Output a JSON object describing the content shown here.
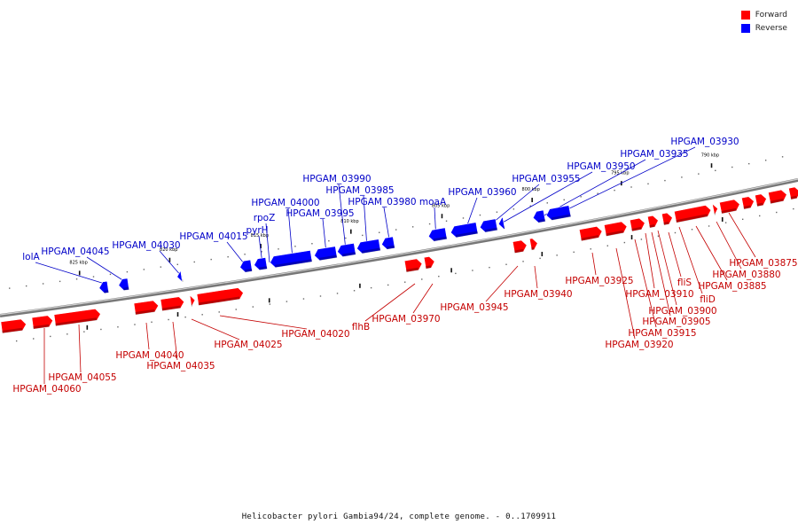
{
  "legend": [
    {
      "label": "Forward",
      "color": "#ff0000"
    },
    {
      "label": "Reverse",
      "color": "#0000ff"
    }
  ],
  "caption": "Helicobacter pylori Gambia94/24, complete genome. - 0..1709911",
  "colors": {
    "forward": "#ff0000",
    "reverse": "#0000ff",
    "backbone": "#777777"
  },
  "ticks": [
    "825 kbp",
    "820 kbp",
    "815 kbp",
    "810 kbp",
    "805 kbp",
    "800 kbp",
    "795 kbp",
    "790 kbp"
  ],
  "forward_genes": [
    "HPGAM_04060",
    "HPGAM_04055",
    "HPGAM_04040",
    "HPGAM_04035",
    "HPGAM_04025",
    "HPGAM_04020",
    "flhB",
    "HPGAM_03970",
    "HPGAM_03945",
    "HPGAM_03940",
    "HPGAM_03925",
    "HPGAM_03920",
    "HPGAM_03915",
    "HPGAM_03910",
    "HPGAM_03905",
    "HPGAM_03900",
    "fliS",
    "fliD",
    "HPGAM_03885",
    "HPGAM_03880",
    "HPGAM_03875"
  ],
  "reverse_genes": [
    "lolA",
    "HPGAM_04045",
    "HPGAM_04030",
    "HPGAM_04015",
    "pyrH",
    "rpoZ",
    "HPGAM_04000",
    "HPGAM_03995",
    "HPGAM_03990",
    "HPGAM_03985",
    "HPGAM_03980",
    "moaA",
    "HPGAM_03960",
    "HPGAM_03955",
    "HPGAM_03950",
    "HPGAM_03935",
    "HPGAM_03930"
  ]
}
